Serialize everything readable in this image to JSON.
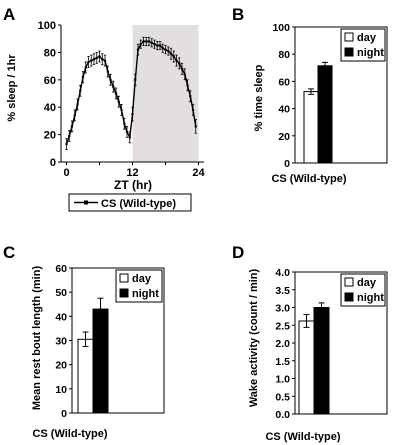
{
  "figure": {
    "panels": [
      "A",
      "B",
      "C",
      "D"
    ]
  },
  "chart_data": [
    {
      "panel": "A",
      "type": "line",
      "xlabel": "ZT (hr)",
      "ylabel": "% sleep / 1hr",
      "xlim": [
        -1,
        25
      ],
      "ylim": [
        0,
        100
      ],
      "xticks": [
        0,
        6,
        12,
        18,
        24
      ],
      "xtick_labels": [
        "0",
        "",
        "12",
        "",
        "24"
      ],
      "yticks": [
        0,
        20,
        40,
        60,
        80,
        100
      ],
      "shaded_x": [
        12,
        24
      ],
      "shade_color": "#e3dfe0",
      "grid": false,
      "legend_position": "bottom-center",
      "series": [
        {
          "name": "CS (Wild-type)",
          "x": [
            0,
            0.5,
            1,
            1.5,
            2,
            2.5,
            3,
            3.5,
            4,
            4.5,
            5,
            5.5,
            6,
            6.5,
            7,
            7.5,
            8,
            8.5,
            9,
            9.5,
            10,
            10.5,
            11,
            11.5,
            12,
            12.5,
            13,
            13.5,
            14,
            14.5,
            15,
            15.5,
            16,
            16.5,
            17,
            17.5,
            18,
            18.5,
            19,
            19.5,
            20,
            20.5,
            21,
            21.5,
            22,
            22.5,
            23,
            23.5
          ],
          "y": [
            13,
            19,
            26,
            34,
            42,
            52,
            62,
            69,
            73,
            74,
            75,
            76,
            77,
            75,
            74,
            66,
            60,
            55,
            50,
            44,
            38,
            28,
            22,
            18,
            35,
            60,
            82,
            86,
            88,
            88,
            88,
            87,
            86,
            85,
            85,
            83,
            82,
            81,
            79,
            77,
            74,
            72,
            68,
            64,
            56,
            48,
            38,
            26
          ],
          "err": [
            4,
            4,
            4,
            4,
            4,
            4,
            4,
            4,
            4,
            4,
            4,
            4,
            4,
            4,
            4,
            4,
            4,
            4,
            4,
            4,
            4,
            4,
            4,
            4,
            5,
            4,
            4,
            3,
            3,
            3,
            3,
            3,
            3,
            3,
            3,
            3,
            3,
            3,
            4,
            4,
            4,
            4,
            4,
            4,
            4,
            4,
            4,
            5
          ]
        }
      ]
    },
    {
      "panel": "B",
      "type": "bar",
      "xlabel": "CS (Wild-type)",
      "ylabel": "% time sleep",
      "ylim": [
        0,
        100
      ],
      "yticks": [
        0,
        20,
        40,
        60,
        80,
        100
      ],
      "grid": false,
      "legend_position": "top-right",
      "series": [
        {
          "name": "day",
          "value": 52.5,
          "err": 2,
          "color": "#ffffff"
        },
        {
          "name": "night",
          "value": 71.5,
          "err": 2.5,
          "color": "#000000"
        }
      ]
    },
    {
      "panel": "C",
      "type": "bar",
      "xlabel": "CS (Wild-type)",
      "ylabel": "Mean rest bout length (min)",
      "ylim": [
        0,
        60
      ],
      "yticks": [
        0,
        10,
        20,
        30,
        40,
        50,
        60
      ],
      "grid": false,
      "legend_position": "top-right",
      "series": [
        {
          "name": "day",
          "value": 30.5,
          "err": 3,
          "color": "#ffffff"
        },
        {
          "name": "night",
          "value": 43,
          "err": 4.5,
          "color": "#000000"
        }
      ]
    },
    {
      "panel": "D",
      "type": "bar",
      "xlabel": "CS (Wild-type)",
      "ylabel": "Wake activity (count / min)",
      "ylim": [
        0,
        4
      ],
      "yticks": [
        0,
        0.5,
        1,
        1.5,
        2,
        2.5,
        3,
        3.5,
        4
      ],
      "ytick_labels": [
        "0.0",
        "0.5",
        "1.0",
        "1.5",
        "2.0",
        "2.5",
        "3.0",
        "3.5",
        "4.0"
      ],
      "grid": false,
      "legend_position": "top-right",
      "series": [
        {
          "name": "day",
          "value": 2.62,
          "err": 0.18,
          "color": "#ffffff"
        },
        {
          "name": "night",
          "value": 3.0,
          "err": 0.13,
          "color": "#000000"
        }
      ]
    }
  ]
}
